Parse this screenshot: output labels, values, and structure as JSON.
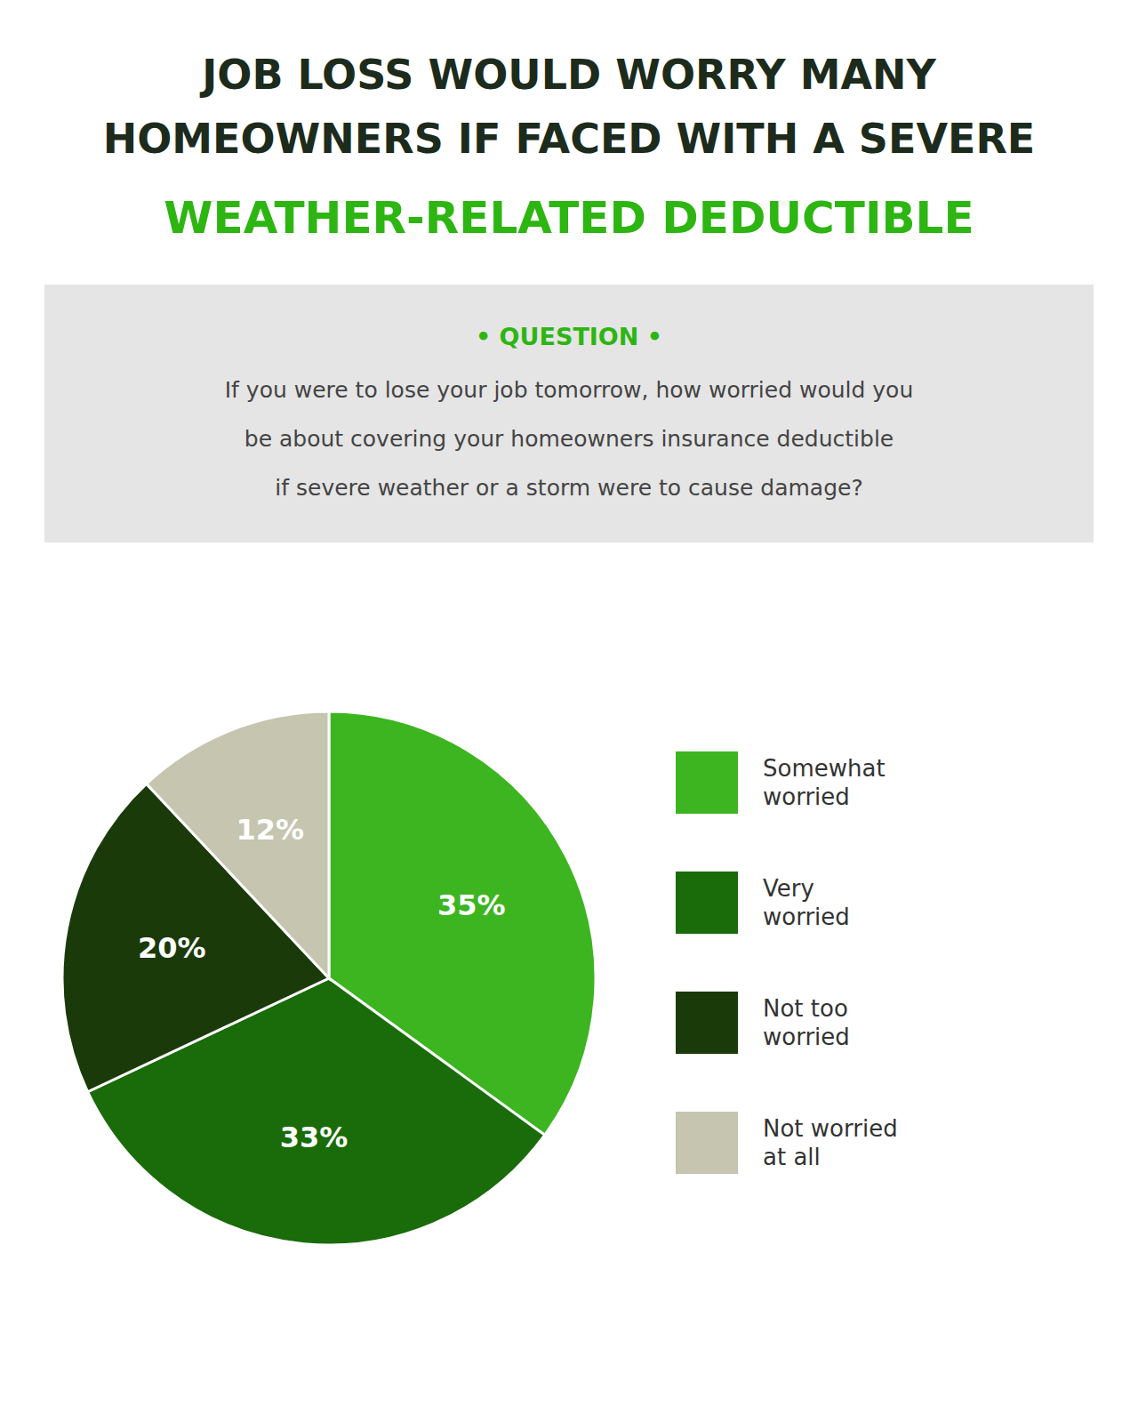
{
  "chart_data": {
    "type": "pie",
    "title": "JOB LOSS WOULD WORRY MANY\nHOMEOWNERS IF FACED WITH A SEVERE",
    "subtitle": "WEATHER-RELATED DEDUCTIBLE",
    "annotations": [
      "• QUESTION •",
      "If you were to lose your job tomorrow, how worried would you",
      "be about covering your homeowners insurance deductible",
      "if severe weather or a storm were to cause damage?"
    ],
    "categories": [
      "Somewhat\nworried",
      "Very\nworried",
      "Not too\nworried",
      "Not worried\nat all"
    ],
    "values": [
      35,
      33,
      20,
      12
    ],
    "value_labels": [
      "35%",
      "33%",
      "20%",
      "12%"
    ],
    "colors": [
      "#3cb521",
      "#1a6b0a",
      "#1a3a0a",
      "#c5c5b0"
    ],
    "data_labels": true,
    "legend": "right"
  }
}
